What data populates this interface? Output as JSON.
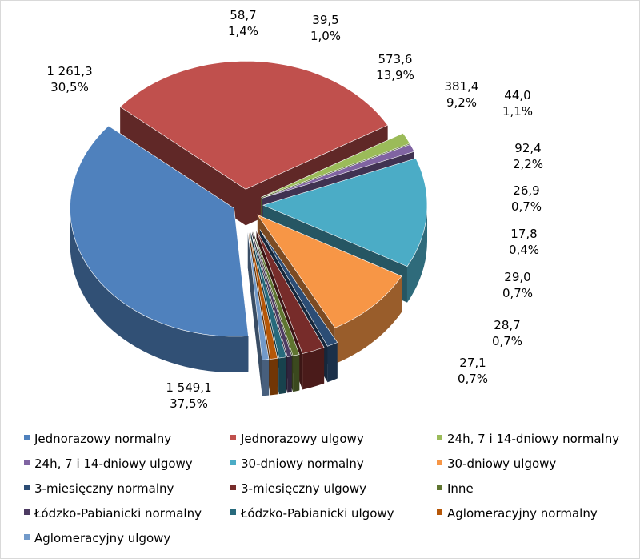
{
  "chart_data": {
    "type": "pie",
    "title": "",
    "slices": [
      {
        "name": "Jednorazowy normalny",
        "value": 1549.1,
        "value_label": "1 549,1",
        "percent_label": "37,5%",
        "color": "#4f81bd"
      },
      {
        "name": "Jednorazowy ulgowy",
        "value": 1261.3,
        "value_label": "1 261,3",
        "percent_label": "30,5%",
        "color": "#c0504d"
      },
      {
        "name": "24h, 7 i 14-dniowy normalny",
        "value": 58.7,
        "value_label": "58,7",
        "percent_label": "1,4%",
        "color": "#9bbb59"
      },
      {
        "name": "24h, 7 i 14-dniowy ulgowy",
        "value": 39.5,
        "value_label": "39,5",
        "percent_label": "1,0%",
        "color": "#8064a2"
      },
      {
        "name": "30-dniowy normalny",
        "value": 573.6,
        "value_label": "573,6",
        "percent_label": "13,9%",
        "color": "#4bacc6"
      },
      {
        "name": "30-dniowy ulgowy",
        "value": 381.4,
        "value_label": "381,4",
        "percent_label": "9,2%",
        "color": "#f79646"
      },
      {
        "name": "3-miesięczny normalny",
        "value": 44.0,
        "value_label": "44,0",
        "percent_label": "1,1%",
        "color": "#2c4d75"
      },
      {
        "name": "3-miesięczny ulgowy",
        "value": 92.4,
        "value_label": "92,4",
        "percent_label": "2,2%",
        "color": "#772c2a"
      },
      {
        "name": "Inne",
        "value": 26.9,
        "value_label": "26,9",
        "percent_label": "0,7%",
        "color": "#5f7530"
      },
      {
        "name": "Łódzko-Pabianicki normalny",
        "value": 17.8,
        "value_label": "17,8",
        "percent_label": "0,4%",
        "color": "#4d3b62"
      },
      {
        "name": "Łódzko-Pabianicki ulgowy",
        "value": 29.0,
        "value_label": "29,0",
        "percent_label": "0,7%",
        "color": "#276a7c"
      },
      {
        "name": "Aglomeracyjny normalny",
        "value": 28.7,
        "value_label": "28,7",
        "percent_label": "0,7%",
        "color": "#b65708"
      },
      {
        "name": "Aglomeracyjny ulgowy",
        "value": 27.1,
        "value_label": "27,1",
        "percent_label": "0,7%",
        "color": "#729aca"
      }
    ],
    "style": "3d-exploded",
    "legend_position": "bottom"
  }
}
